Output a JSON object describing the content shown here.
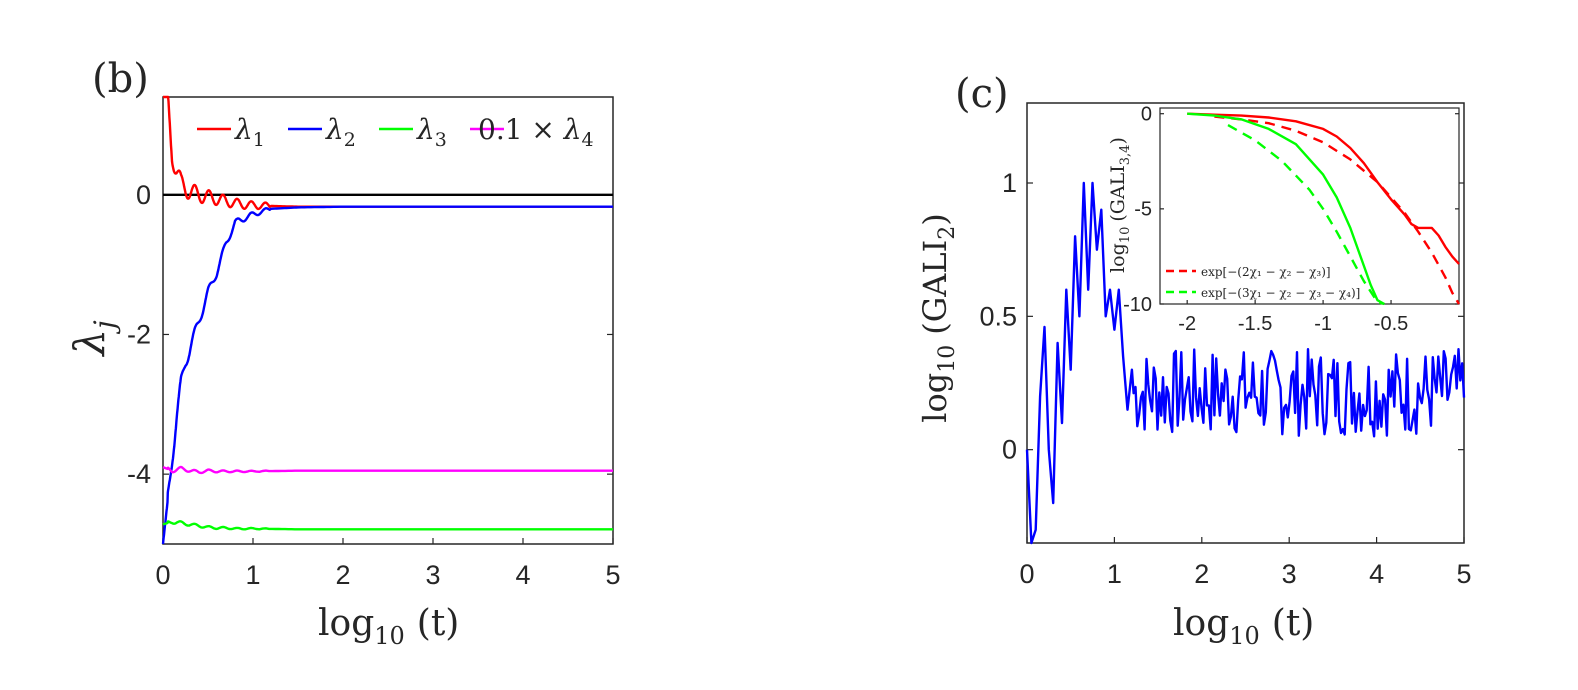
{
  "chart_data": [
    {
      "panel_label": "(b)",
      "type": "line",
      "xlabel": {
        "base": "log",
        "sub": "10",
        "tail": "(t)"
      },
      "ylabel": {
        "base": "λ",
        "sub": "j"
      },
      "xlim": [
        0,
        5
      ],
      "ylim": [
        -5,
        1.4
      ],
      "xticks": [
        "0",
        "1",
        "2",
        "3",
        "4",
        "5"
      ],
      "yticks": [
        "0",
        "-2",
        "-4"
      ],
      "zero_line": true,
      "legend_position": "top",
      "colors": {
        "red": "#ff0000",
        "blue": "#0000ff",
        "green": "#00ff00",
        "magenta": "#ff00ff",
        "black": "#000000"
      },
      "series": [
        {
          "legend": {
            "pre": "",
            "main": "λ",
            "sub": "1"
          },
          "color": "#ff0000",
          "x": [
            0,
            0.05,
            0.1,
            0.15,
            0.2,
            0.3,
            0.4,
            0.5,
            0.6,
            0.7,
            0.8,
            0.9,
            1.0,
            1.2,
            1.5,
            2.0,
            2.5,
            3,
            4,
            5
          ],
          "y": [
            1.4,
            1.4,
            0.6,
            0.35,
            0.15,
            0.05,
            0.0,
            -0.03,
            -0.06,
            -0.09,
            -0.12,
            -0.14,
            -0.15,
            -0.16,
            -0.17,
            -0.17,
            -0.17,
            -0.17,
            -0.17,
            -0.17
          ]
        },
        {
          "legend": {
            "pre": "",
            "main": "λ",
            "sub": "2"
          },
          "color": "#0000ff",
          "x": [
            0,
            0.05,
            0.1,
            0.15,
            0.2,
            0.25,
            0.3,
            0.4,
            0.5,
            0.6,
            0.7,
            0.8,
            1.0,
            1.2,
            1.5,
            2.0,
            2.5,
            3,
            4,
            5
          ],
          "y": [
            -5.0,
            -4.4,
            -3.8,
            -3.2,
            -2.7,
            -2.4,
            -2.2,
            -1.8,
            -1.4,
            -1.1,
            -0.7,
            -0.4,
            -0.28,
            -0.2,
            -0.18,
            -0.17,
            -0.17,
            -0.17,
            -0.17,
            -0.17
          ]
        },
        {
          "legend": {
            "pre": "",
            "main": "λ",
            "sub": "3"
          },
          "color": "#00ff00",
          "x": [
            0,
            0.1,
            0.2,
            0.3,
            0.4,
            0.5,
            0.6,
            0.7,
            0.8,
            1.0,
            1.5,
            2,
            3,
            4,
            5
          ],
          "y": [
            -4.72,
            -4.68,
            -4.7,
            -4.72,
            -4.74,
            -4.76,
            -4.77,
            -4.77,
            -4.78,
            -4.78,
            -4.79,
            -4.79,
            -4.79,
            -4.79,
            -4.79
          ]
        },
        {
          "legend": {
            "pre": "0.1 × ",
            "main": "λ",
            "sub": "4"
          },
          "color": "#ff00ff",
          "x": [
            0,
            0.1,
            0.2,
            0.3,
            0.4,
            0.5,
            0.6,
            0.7,
            0.8,
            1.0,
            1.5,
            2,
            3,
            4,
            5
          ],
          "y": [
            -3.9,
            -3.95,
            -3.92,
            -3.95,
            -3.97,
            -3.95,
            -3.96,
            -3.96,
            -3.96,
            -3.96,
            -3.95,
            -3.95,
            -3.95,
            -3.95,
            -3.95
          ]
        }
      ]
    },
    {
      "panel_label": "(c)",
      "type": "line",
      "xlabel": {
        "base": "log",
        "sub": "10",
        "tail": "(t)"
      },
      "ylabel": {
        "base": "log",
        "sub": "10",
        "tail": "(GALI",
        "tail_sub": "2",
        "close": ")"
      },
      "xlim": [
        0,
        5
      ],
      "ylim": [
        -0.35,
        1.3
      ],
      "xticks": [
        "0",
        "1",
        "2",
        "3",
        "4",
        "5"
      ],
      "yticks": [
        "0",
        "0.5",
        "1"
      ],
      "series": [
        {
          "name": "",
          "color": "#0000ff",
          "x": [
            0,
            0.05,
            0.1,
            0.15,
            0.2,
            0.25,
            0.3,
            0.35,
            0.4,
            0.45,
            0.5,
            0.55,
            0.6,
            0.65,
            0.7,
            0.75,
            0.8,
            0.85,
            0.9,
            0.95,
            1.0,
            1.05,
            1.1,
            1.15,
            1.2
          ],
          "y": [
            0,
            -0.35,
            -0.3,
            0.2,
            0.46,
            0.0,
            -0.2,
            0.4,
            0.1,
            0.6,
            0.3,
            0.8,
            0.5,
            1.0,
            0.6,
            1.0,
            0.75,
            0.9,
            0.5,
            0.6,
            0.45,
            0.6,
            0.35,
            0.15,
            0.3
          ],
          "noise_band": [
            0.05,
            0.38
          ],
          "noise_from": 1.2
        }
      ],
      "inset": {
        "ylabel": {
          "base": "log",
          "sub": "10",
          "tail": "(GALI",
          "tail_sub": "3,4",
          "close": ")"
        },
        "xlim": [
          -2.2,
          0.0
        ],
        "ylim": [
          -10,
          0.3
        ],
        "xticks": [
          "-2",
          "-1.5",
          "-1",
          "-0.5"
        ],
        "yticks": [
          "0",
          "-5",
          "-10"
        ],
        "legend": [
          {
            "label": "exp[−(2χ₁ − χ₂ − χ₃)]",
            "color": "#ff0000",
            "style": "dashed"
          },
          {
            "label": "exp[−(3χ₁ − χ₂ − χ₃ − χ₄)]",
            "color": "#00ff00",
            "style": "dashed"
          }
        ],
        "series": [
          {
            "name": "",
            "color": "#ff0000",
            "style": "solid",
            "x": [
              -2.0,
              -1.8,
              -1.6,
              -1.4,
              -1.2,
              -1.0,
              -0.9,
              -0.8,
              -0.7,
              -0.6,
              -0.5,
              -0.4,
              -0.35,
              -0.3,
              -0.25,
              -0.2,
              -0.15,
              -0.1,
              -0.05,
              0.0
            ],
            "y": [
              0,
              -0.05,
              -0.1,
              -0.2,
              -0.4,
              -0.8,
              -1.2,
              -1.8,
              -2.6,
              -3.6,
              -4.5,
              -5.3,
              -5.8,
              -6.0,
              -6.0,
              -6.0,
              -6.4,
              -7.0,
              -7.5,
              -7.9
            ]
          },
          {
            "name": "",
            "color": "#ff0000",
            "style": "dashed",
            "x": [
              -1.8,
              -1.6,
              -1.4,
              -1.2,
              -1.0,
              -0.8,
              -0.6,
              -0.4,
              -0.3,
              -0.2,
              -0.1,
              -0.05,
              0.0
            ],
            "y": [
              -0.15,
              -0.3,
              -0.5,
              -0.9,
              -1.5,
              -2.4,
              -3.6,
              -5.2,
              -6.2,
              -7.3,
              -8.6,
              -9.4,
              -10.2
            ]
          },
          {
            "name": "",
            "color": "#00ff00",
            "style": "solid",
            "x": [
              -2.0,
              -1.8,
              -1.6,
              -1.4,
              -1.2,
              -1.0,
              -0.9,
              -0.8,
              -0.75,
              -0.7,
              -0.65,
              -0.6,
              -0.55
            ],
            "y": [
              0,
              -0.1,
              -0.3,
              -0.8,
              -1.6,
              -3.2,
              -4.4,
              -6.0,
              -7.0,
              -8.0,
              -9.0,
              -9.8,
              -10.3
            ]
          },
          {
            "name": "",
            "color": "#00ff00",
            "style": "dashed",
            "x": [
              -1.7,
              -1.5,
              -1.3,
              -1.1,
              -1.0,
              -0.9,
              -0.8,
              -0.7,
              -0.6,
              -0.55
            ],
            "y": [
              -0.6,
              -1.4,
              -2.5,
              -4.0,
              -5.0,
              -6.2,
              -7.5,
              -8.8,
              -9.9,
              -10.3
            ]
          }
        ]
      }
    }
  ]
}
